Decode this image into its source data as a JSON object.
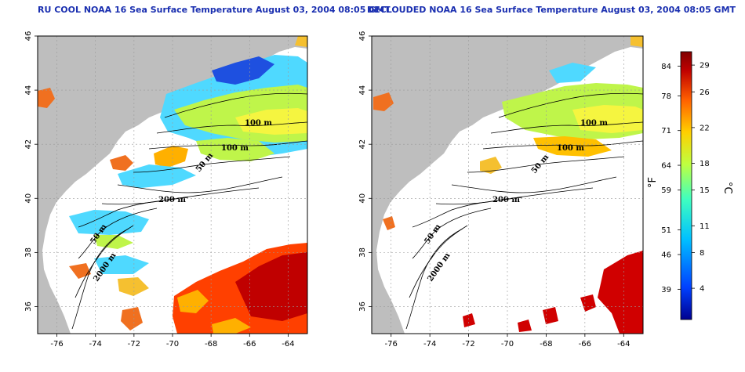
{
  "titles": {
    "left": "RU COOL NOAA 16 Sea Surface Temperature August 03, 2004 08:05 GMT",
    "right": "DECLOUDED NOAA 16 Sea Surface Temperature August 03, 2004 08:05 GMT"
  },
  "map_axes": {
    "lon_ticks": [
      "-76",
      "-74",
      "-72",
      "-70",
      "-68",
      "-66",
      "-64"
    ],
    "lat_ticks": [
      "36",
      "38",
      "40",
      "42",
      "44",
      "46"
    ],
    "lon_range": [
      -77,
      -63
    ],
    "lat_range": [
      35,
      46
    ]
  },
  "contour_labels": {
    "left": [
      "100 m",
      "100 m",
      "50 m",
      "200 m",
      "50 m",
      "2000 m"
    ],
    "right": [
      "100 m",
      "100 m",
      "50 m",
      "200 m",
      "50 m",
      "2000 m"
    ]
  },
  "colorbar": {
    "fahrenheit_ticks": [
      "84",
      "78",
      "71",
      "64",
      "59",
      "51",
      "46",
      "39"
    ],
    "celsius_ticks": [
      "29",
      "26",
      "22",
      "18",
      "15",
      "11",
      "8",
      "4"
    ],
    "fahrenheit_unit": "°F",
    "celsius_unit": "°C",
    "colors": [
      "#00008f",
      "#0040ff",
      "#00c0ff",
      "#40ffbf",
      "#bfff40",
      "#ffcf00",
      "#ff6000",
      "#bf0000",
      "#800000"
    ]
  },
  "colors": {
    "land": "#bebebe",
    "ocean": "#ffffff",
    "title": "#1a2fb0"
  }
}
